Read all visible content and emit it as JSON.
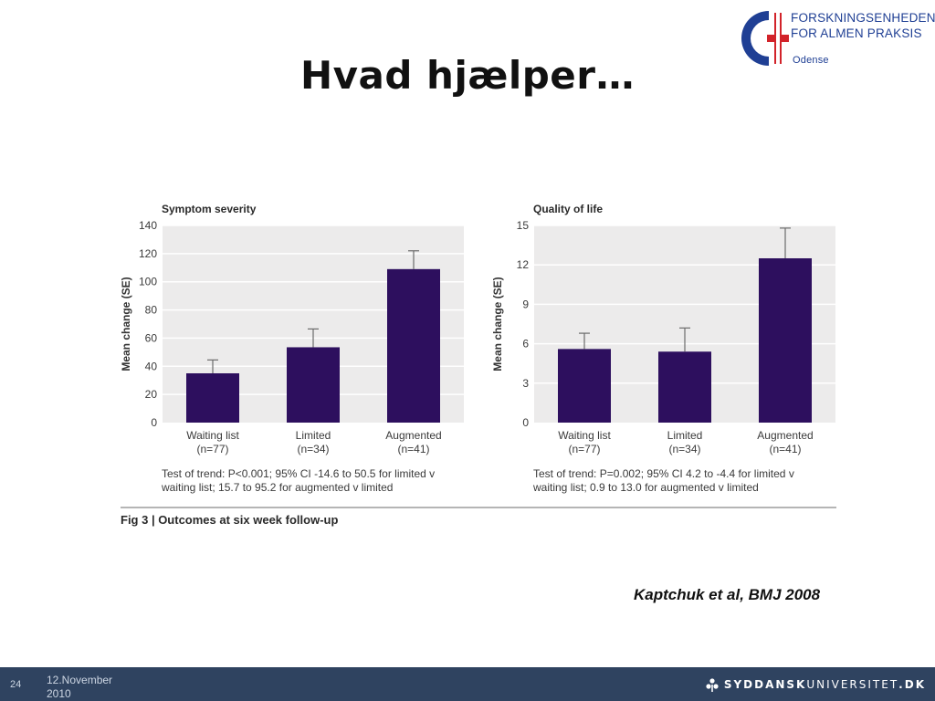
{
  "slide": {
    "title": "Hvad hjælper…",
    "citation": "Kaptchuk et al, BMJ 2008",
    "number": "24",
    "date": "12.November 2010"
  },
  "header_logo": {
    "line1": "FORSKNINGSENHEDEN",
    "line2": "FOR ALMEN PRAKSIS",
    "line3": "Odense",
    "colors": {
      "blue": "#1f3f94",
      "red": "#d2232a"
    }
  },
  "footer_logo": {
    "word_bold_1": "SYDDANSK",
    "word_regular": "UNIVERSITET",
    "word_bold_2": ".DK"
  },
  "colors": {
    "bar": "#2d0f5e",
    "plot_bg": "#ecebeb",
    "grid": "#ffffff",
    "footer": "#2f4360"
  },
  "figure_caption": "Fig 3 | Outcomes at six week follow-up",
  "chart_data": [
    {
      "type": "bar",
      "title": "Symptom severity",
      "ylabel": "Mean change (SE)",
      "xlabel": "",
      "categories": [
        "Waiting list",
        "Limited",
        "Augmented"
      ],
      "category_n": [
        "(n=77)",
        "(n=34)",
        "(n=41)"
      ],
      "values": [
        35,
        53.5,
        109
      ],
      "errors": [
        9.5,
        13,
        13
      ],
      "ylim": [
        0,
        140
      ],
      "yticks": [
        0,
        20,
        40,
        60,
        80,
        100,
        120,
        140
      ],
      "grid": true,
      "note_line1": "Test of trend: P<0.001; 95% CI -14.6 to 50.5 for limited v",
      "note_line2": "waiting list; 15.7 to 95.2 for augmented v limited"
    },
    {
      "type": "bar",
      "title": "Quality of life",
      "ylabel": "Mean change (SE)",
      "xlabel": "",
      "categories": [
        "Waiting list",
        "Limited",
        "Augmented"
      ],
      "category_n": [
        "(n=77)",
        "(n=34)",
        "(n=41)"
      ],
      "values": [
        5.6,
        5.4,
        12.5
      ],
      "errors": [
        1.2,
        1.8,
        2.3
      ],
      "ylim": [
        0,
        15
      ],
      "yticks": [
        0,
        3,
        6,
        9,
        12,
        15
      ],
      "grid": true,
      "note_line1": "Test of trend: P=0.002; 95% CI 4.2 to -4.4 for limited v",
      "note_line2": "waiting list; 0.9 to 13.0 for augmented v limited"
    }
  ]
}
